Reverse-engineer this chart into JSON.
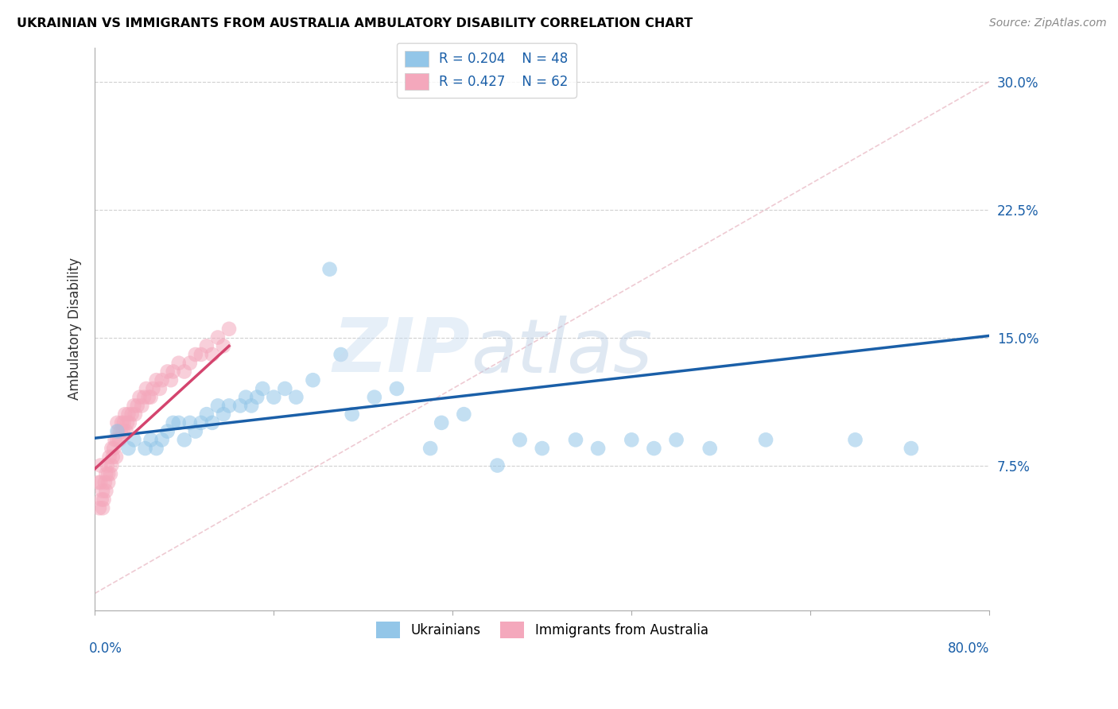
{
  "title": "UKRAINIAN VS IMMIGRANTS FROM AUSTRALIA AMBULATORY DISABILITY CORRELATION CHART",
  "source": "Source: ZipAtlas.com",
  "ylabel": "Ambulatory Disability",
  "yticks": [
    "7.5%",
    "15.0%",
    "22.5%",
    "30.0%"
  ],
  "ytick_values": [
    0.075,
    0.15,
    0.225,
    0.3
  ],
  "xlim": [
    0.0,
    0.8
  ],
  "ylim": [
    -0.01,
    0.32
  ],
  "blue_R": 0.204,
  "blue_N": 48,
  "pink_R": 0.427,
  "pink_N": 62,
  "blue_color": "#93c6e8",
  "pink_color": "#f4a8bc",
  "blue_line_color": "#1a5fa8",
  "pink_line_color": "#d4446e",
  "watermark_zip": "ZIP",
  "watermark_atlas": "atlas",
  "blue_scatter_x": [
    0.02,
    0.03,
    0.035,
    0.045,
    0.05,
    0.055,
    0.06,
    0.065,
    0.07,
    0.075,
    0.08,
    0.085,
    0.09,
    0.095,
    0.1,
    0.105,
    0.11,
    0.115,
    0.12,
    0.13,
    0.135,
    0.14,
    0.145,
    0.15,
    0.16,
    0.17,
    0.18,
    0.195,
    0.21,
    0.22,
    0.23,
    0.25,
    0.27,
    0.3,
    0.31,
    0.33,
    0.36,
    0.38,
    0.4,
    0.43,
    0.45,
    0.48,
    0.5,
    0.52,
    0.55,
    0.6,
    0.68,
    0.73
  ],
  "blue_scatter_y": [
    0.095,
    0.085,
    0.09,
    0.085,
    0.09,
    0.085,
    0.09,
    0.095,
    0.1,
    0.1,
    0.09,
    0.1,
    0.095,
    0.1,
    0.105,
    0.1,
    0.11,
    0.105,
    0.11,
    0.11,
    0.115,
    0.11,
    0.115,
    0.12,
    0.115,
    0.12,
    0.115,
    0.125,
    0.19,
    0.14,
    0.105,
    0.115,
    0.12,
    0.085,
    0.1,
    0.105,
    0.075,
    0.09,
    0.085,
    0.09,
    0.085,
    0.09,
    0.085,
    0.09,
    0.085,
    0.09,
    0.09,
    0.085
  ],
  "pink_scatter_x": [
    0.003,
    0.004,
    0.005,
    0.005,
    0.006,
    0.007,
    0.007,
    0.008,
    0.009,
    0.01,
    0.01,
    0.011,
    0.012,
    0.012,
    0.013,
    0.014,
    0.015,
    0.015,
    0.016,
    0.017,
    0.018,
    0.019,
    0.02,
    0.02,
    0.021,
    0.022,
    0.023,
    0.024,
    0.025,
    0.026,
    0.027,
    0.028,
    0.029,
    0.03,
    0.031,
    0.033,
    0.035,
    0.036,
    0.038,
    0.04,
    0.042,
    0.044,
    0.046,
    0.048,
    0.05,
    0.052,
    0.055,
    0.058,
    0.06,
    0.065,
    0.068,
    0.07,
    0.075,
    0.08,
    0.085,
    0.09,
    0.095,
    0.1,
    0.105,
    0.11,
    0.115,
    0.12
  ],
  "pink_scatter_y": [
    0.065,
    0.05,
    0.075,
    0.065,
    0.055,
    0.06,
    0.05,
    0.055,
    0.065,
    0.07,
    0.06,
    0.075,
    0.07,
    0.065,
    0.08,
    0.07,
    0.085,
    0.075,
    0.08,
    0.085,
    0.09,
    0.08,
    0.09,
    0.1,
    0.095,
    0.09,
    0.095,
    0.1,
    0.095,
    0.1,
    0.105,
    0.095,
    0.1,
    0.105,
    0.1,
    0.105,
    0.11,
    0.105,
    0.11,
    0.115,
    0.11,
    0.115,
    0.12,
    0.115,
    0.115,
    0.12,
    0.125,
    0.12,
    0.125,
    0.13,
    0.125,
    0.13,
    0.135,
    0.13,
    0.135,
    0.14,
    0.14,
    0.145,
    0.14,
    0.15,
    0.145,
    0.155
  ],
  "blue_line_x": [
    0.0,
    0.8
  ],
  "blue_line_y": [
    0.091,
    0.151
  ],
  "pink_line_x": [
    0.0,
    0.12
  ],
  "pink_line_y": [
    0.073,
    0.145
  ]
}
